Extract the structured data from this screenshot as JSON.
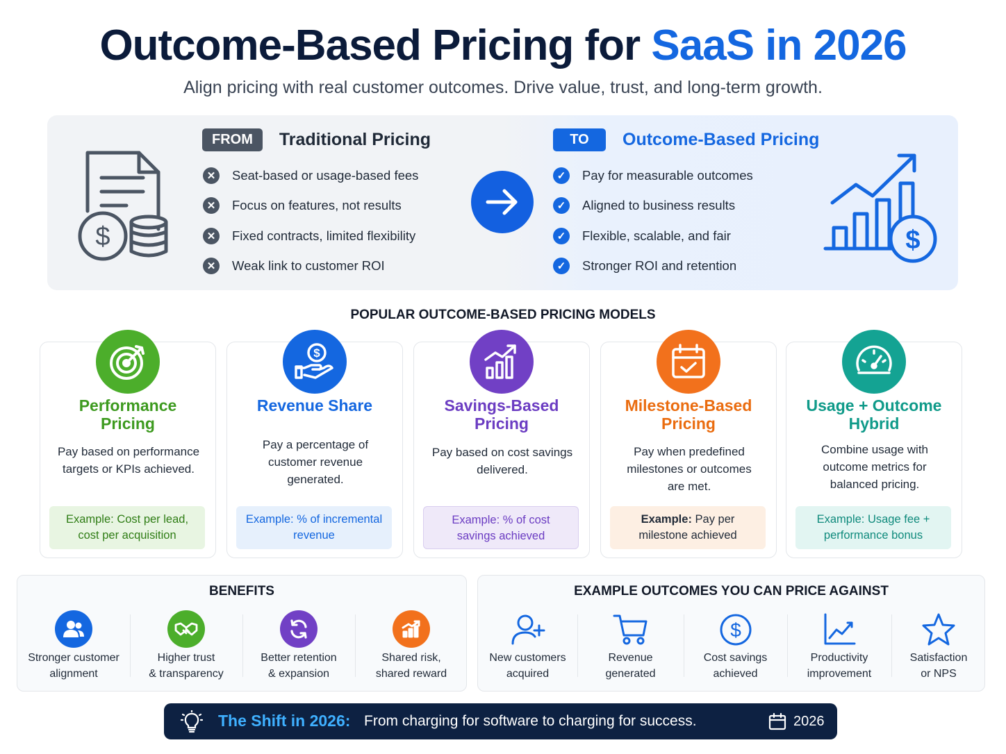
{
  "header": {
    "title_main": "Outcome-Based Pricing for",
    "title_accent": "SaaS in 2026",
    "subtitle": "Align pricing with real customer outcomes. Drive value, trust, and long-term growth."
  },
  "comparison": {
    "from": {
      "tag": "FROM",
      "title": "Traditional Pricing",
      "items": [
        "Seat-based or usage-based fees",
        "Focus on features, not results",
        "Fixed contracts, limited flexibility",
        "Weak link to customer ROI"
      ]
    },
    "to": {
      "tag": "TO",
      "title": "Outcome-Based Pricing",
      "items": [
        "Pay for measurable outcomes",
        "Aligned to business results",
        "Flexible, scalable, and fair",
        "Stronger ROI and retention"
      ]
    }
  },
  "models": {
    "heading": "POPULAR OUTCOME-BASED PRICING MODELS",
    "cards": [
      {
        "title1": "Performance",
        "title2": "Pricing",
        "desc1": "Pay based on performance",
        "desc2": "targets or KPIs achieved.",
        "desc3": "",
        "ex1": "Example: Cost per lead,",
        "ex2": "cost per acquisition",
        "icon": "target-icon",
        "color": "#4cae2b"
      },
      {
        "title1": "Revenue Share",
        "title2": "",
        "desc1": "Pay a percentage of",
        "desc2": "customer revenue",
        "desc3": "generated.",
        "ex1": "Example: % of incremental",
        "ex2": "revenue",
        "icon": "hand-dollar-icon",
        "color": "#1467e0"
      },
      {
        "title1": "Savings-Based",
        "title2": "Pricing",
        "desc1": "Pay based on cost savings",
        "desc2": "delivered.",
        "desc3": "",
        "ex1": "Example: % of cost",
        "ex2": "savings achieved",
        "icon": "bar-chart-up-icon",
        "color": "#7140c5"
      },
      {
        "title1": "Milestone-Based",
        "title2": "Pricing",
        "desc1": "Pay when predefined",
        "desc2": "milestones or outcomes",
        "desc3": "are met.",
        "ex1_bold": "Example:",
        "ex1_rest": " Pay per",
        "ex2": "milestone achieved",
        "icon": "calendar-check-icon",
        "color": "#f2711c"
      },
      {
        "title1": "Usage + Outcome",
        "title2": "Hybrid",
        "desc1": "Combine usage with",
        "desc2": "outcome metrics for",
        "desc3": "balanced pricing.",
        "ex1": "Example: Usage fee +",
        "ex2": "performance bonus",
        "icon": "gauge-icon",
        "color": "#14a393"
      }
    ]
  },
  "benefits": {
    "heading": "BENEFITS",
    "items": [
      {
        "l1": "Stronger customer",
        "l2": "alignment",
        "icon": "users-icon",
        "color": "#1467e0"
      },
      {
        "l1": "Higher trust",
        "l2": "& transparency",
        "icon": "handshake-icon",
        "color": "#4cae2b"
      },
      {
        "l1": "Better retention",
        "l2": "& expansion",
        "icon": "refresh-icon",
        "color": "#7140c5"
      },
      {
        "l1": "Shared risk,",
        "l2": "shared reward",
        "icon": "growth-chart-icon",
        "color": "#f2711c"
      }
    ]
  },
  "outcomes": {
    "heading": "EXAMPLE OUTCOMES YOU CAN PRICE AGAINST",
    "items": [
      {
        "l1": "New customers",
        "l2": "acquired",
        "icon": "user-plus-icon"
      },
      {
        "l1": "Revenue",
        "l2": "generated",
        "icon": "cart-icon"
      },
      {
        "l1": "Cost savings",
        "l2": "achieved",
        "icon": "dollar-circle-icon"
      },
      {
        "l1": "Productivity",
        "l2": "improvement",
        "icon": "line-chart-icon"
      },
      {
        "l1": "Satisfaction",
        "l2": "or NPS",
        "icon": "star-icon"
      }
    ]
  },
  "footer": {
    "heading": "The Shift in 2026:",
    "text": "From charging for software to charging for success.",
    "year": "2026"
  }
}
